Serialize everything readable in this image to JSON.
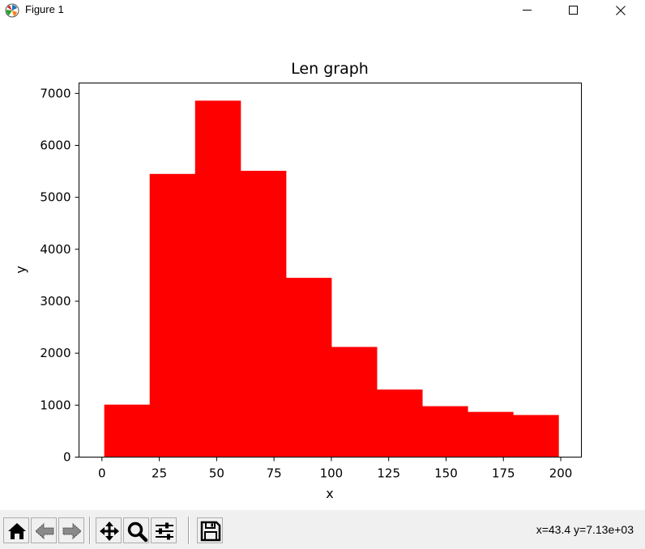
{
  "window": {
    "title": "Figure 1",
    "app_icon": "matplotlib-icon",
    "controls": [
      "minimize-icon",
      "maximize-icon",
      "close-icon"
    ]
  },
  "colors": {
    "bars": "#ff0000",
    "axes": "#000000",
    "toolbar_bg": "#f0f0f0"
  },
  "chart_data": {
    "type": "bar",
    "title": "Len graph",
    "xlabel": "x",
    "ylabel": "y",
    "xlim": [
      -10,
      209
    ],
    "ylim": [
      0,
      7200
    ],
    "xticks": [
      0,
      25,
      50,
      75,
      100,
      125,
      150,
      175,
      200
    ],
    "yticks": [
      0,
      1000,
      2000,
      3000,
      4000,
      5000,
      6000,
      7000
    ],
    "bin_edges": [
      1,
      20.8,
      40.6,
      60.4,
      80.2,
      100,
      119.8,
      139.6,
      159.4,
      179.2,
      199
    ],
    "values": [
      1010,
      5450,
      6860,
      5510,
      3450,
      2120,
      1300,
      980,
      870,
      810
    ],
    "grid": false,
    "legend": "none"
  },
  "toolbar": {
    "buttons": [
      {
        "name": "home-button",
        "icon": "home-icon"
      },
      {
        "name": "back-button",
        "icon": "back-arrow-icon"
      },
      {
        "name": "forward-button",
        "icon": "forward-arrow-icon"
      },
      {
        "name": "pan-button",
        "icon": "move-icon"
      },
      {
        "name": "zoom-button",
        "icon": "magnifier-icon"
      },
      {
        "name": "configure-subplots-button",
        "icon": "sliders-icon"
      },
      {
        "name": "save-button",
        "icon": "floppy-disk-icon"
      }
    ],
    "coordinates": "x=43.4 y=7.13e+03"
  }
}
